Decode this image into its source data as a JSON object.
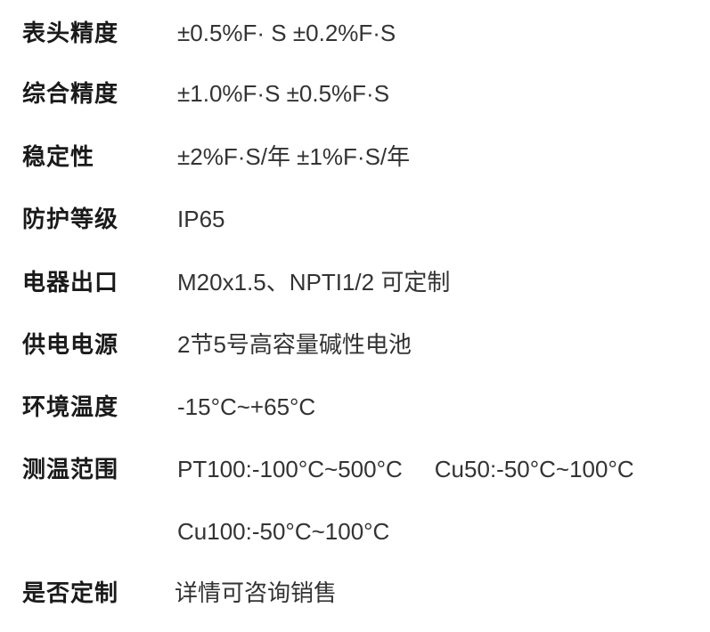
{
  "specs": [
    {
      "label": "表头精度",
      "value": "±0.5%F· S ±0.2%F·S"
    },
    {
      "label": "综合精度",
      "value": "±1.0%F·S ±0.5%F·S"
    },
    {
      "label": "稳定性",
      "value": "±2%F·S/年 ±1%F·S/年"
    },
    {
      "label": "防护等级",
      "value": "IP65"
    },
    {
      "label": "电器出口",
      "value": "M20x1.5、NPTI1/2 可定制"
    },
    {
      "label": "供电电源",
      "value": "2节5号高容量碱性电池"
    },
    {
      "label": "环境温度",
      "value": "-15°C~+65°C"
    },
    {
      "label": "测温范围",
      "value": "PT100:-100°C~500°C",
      "value2": "Cu50:-50°C~100°C",
      "value3": "Cu100:-50°C~100°C"
    },
    {
      "label": "是否定制",
      "value": "详情可咨询销售"
    }
  ]
}
